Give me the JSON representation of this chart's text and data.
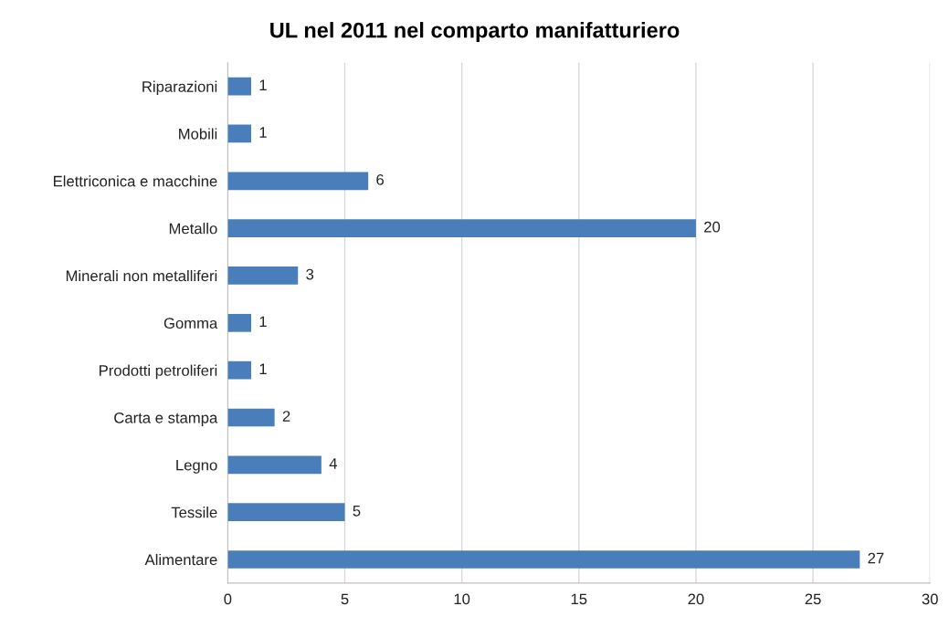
{
  "chart_data": {
    "type": "bar",
    "orientation": "horizontal",
    "title": "UL nel 2011 nel comparto manifatturiero",
    "categories": [
      "Riparazioni",
      "Mobili",
      "Elettriconica e macchine",
      "Metallo",
      "Minerali non metalliferi",
      "Gomma",
      "Prodotti petroliferi",
      "Carta e stampa",
      "Legno",
      "Tessile",
      "Alimentare"
    ],
    "values": [
      1,
      1,
      6,
      20,
      3,
      1,
      1,
      2,
      4,
      5,
      27
    ],
    "color": "#4a7ebb",
    "xlim": [
      0,
      30
    ],
    "xticks": [
      0,
      5,
      10,
      15,
      20,
      25,
      30
    ],
    "grid": "x",
    "data_labels": true
  }
}
